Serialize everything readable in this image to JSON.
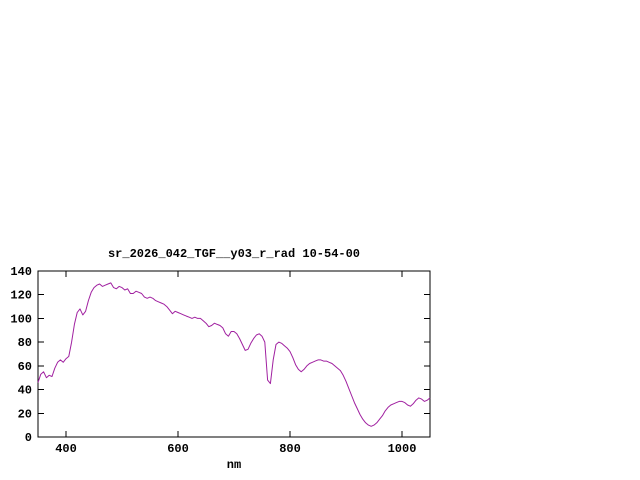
{
  "window": {
    "background_color": "#ffffff",
    "foreground_color": "#000000"
  },
  "chart_data": {
    "type": "line",
    "title": "sr_2026_042_TGF__y03_r_rad 10-54-00",
    "xlabel": "nm",
    "ylabel": "",
    "xlim": [
      350,
      1050
    ],
    "ylim": [
      0,
      140
    ],
    "xticks": [
      400,
      600,
      800,
      1000
    ],
    "yticks": [
      0,
      20,
      40,
      60,
      80,
      100,
      120,
      140
    ],
    "grid": false,
    "legend_position": "none",
    "line_color": "#a020a0",
    "series": [
      {
        "name": "sr_2026_042_TGF__y03_r_rad",
        "x": [
          350,
          355,
          360,
          365,
          370,
          375,
          380,
          385,
          390,
          395,
          400,
          405,
          410,
          415,
          420,
          425,
          430,
          435,
          440,
          445,
          450,
          455,
          460,
          465,
          470,
          475,
          480,
          485,
          490,
          495,
          500,
          505,
          510,
          515,
          520,
          525,
          530,
          535,
          540,
          545,
          550,
          555,
          560,
          565,
          570,
          575,
          580,
          585,
          590,
          595,
          600,
          605,
          610,
          615,
          620,
          625,
          630,
          635,
          640,
          645,
          650,
          655,
          660,
          665,
          670,
          675,
          680,
          685,
          690,
          695,
          700,
          705,
          710,
          715,
          720,
          725,
          730,
          735,
          740,
          745,
          750,
          755,
          760,
          765,
          770,
          775,
          780,
          785,
          790,
          795,
          800,
          805,
          810,
          815,
          820,
          825,
          830,
          835,
          840,
          845,
          850,
          855,
          860,
          865,
          870,
          875,
          880,
          885,
          890,
          895,
          900,
          905,
          910,
          915,
          920,
          925,
          930,
          935,
          940,
          945,
          950,
          955,
          960,
          965,
          970,
          975,
          980,
          985,
          990,
          995,
          1000,
          1005,
          1010,
          1015,
          1020,
          1025,
          1030,
          1035,
          1040,
          1045,
          1050
        ],
        "y": [
          46,
          53,
          55,
          50,
          52,
          51,
          58,
          63,
          65,
          63,
          66,
          68,
          80,
          95,
          105,
          108,
          103,
          106,
          115,
          122,
          126,
          128,
          129,
          127,
          128,
          129,
          130,
          126,
          125,
          127,
          126,
          124,
          125,
          121,
          121,
          123,
          122,
          121,
          118,
          117,
          118,
          117,
          115,
          114,
          113,
          112,
          110,
          107,
          104,
          106,
          105,
          104,
          103,
          102,
          101,
          100,
          101,
          100,
          100,
          98,
          96,
          93,
          94,
          96,
          95,
          94,
          92,
          87,
          85,
          89,
          89,
          87,
          83,
          78,
          73,
          74,
          79,
          83,
          86,
          87,
          85,
          80,
          48,
          45,
          65,
          78,
          80,
          79,
          77,
          75,
          72,
          67,
          61,
          57,
          55,
          57,
          60,
          62,
          63,
          64,
          65,
          65,
          64,
          64,
          63,
          62,
          60,
          58,
          56,
          52,
          47,
          41,
          35,
          29,
          24,
          19,
          15,
          12,
          10,
          9,
          10,
          12,
          15,
          18,
          22,
          25,
          27,
          28,
          29,
          30,
          30,
          29,
          27,
          26,
          28,
          31,
          33,
          32,
          30,
          31,
          33
        ]
      }
    ]
  }
}
